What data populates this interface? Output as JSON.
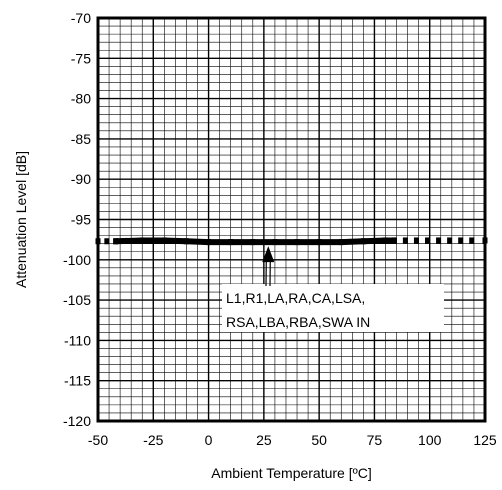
{
  "chart_data": {
    "type": "line",
    "title": "",
    "xlabel": "Ambient Temperature [ºC]",
    "ylabel": "Attenuation Level [dB]",
    "xlim": [
      -50,
      125
    ],
    "ylim": [
      -120,
      -70
    ],
    "x_ticks": [
      -50,
      -25,
      0,
      25,
      50,
      75,
      100,
      125
    ],
    "x_tick_labels": [
      "-50",
      "-25",
      "0",
      "25",
      "50",
      "75",
      "100",
      "125"
    ],
    "y_ticks": [
      -70,
      -75,
      -80,
      -85,
      -90,
      -95,
      -100,
      -105,
      -110,
      -115,
      -120
    ],
    "y_tick_labels": [
      "-70",
      "-75",
      "-80",
      "-85",
      "-90",
      "-95",
      "-100",
      "-105",
      "-110",
      "-115",
      "-120"
    ],
    "grid": true,
    "series": [
      {
        "line_style": "solid",
        "x": [
          -42,
          -30,
          -20,
          -10,
          0,
          10,
          20,
          30,
          40,
          50,
          60,
          70,
          80,
          84
        ],
        "y": [
          -97.7,
          -97.6,
          -97.6,
          -97.7,
          -97.8,
          -97.8,
          -97.8,
          -97.8,
          -97.8,
          -97.8,
          -97.8,
          -97.7,
          -97.6,
          -97.6
        ]
      },
      {
        "line_style": "dotted",
        "x": [
          -50,
          -46,
          -42,
          84,
          89,
          94,
          99,
          104,
          109,
          114,
          119,
          125
        ],
        "y": [
          -97.7,
          -97.7,
          -97.7,
          -97.6,
          -97.6,
          -97.6,
          -97.6,
          -97.6,
          -97.6,
          -97.6,
          -97.6,
          -97.6
        ]
      }
    ],
    "annotation": {
      "lines": [
        "L1,R1,LA,RA,CA,LSA,",
        "RSA,LBA,RBA,SWA  IN"
      ],
      "arrow_target": {
        "x": 27,
        "y": -97.8
      }
    }
  }
}
